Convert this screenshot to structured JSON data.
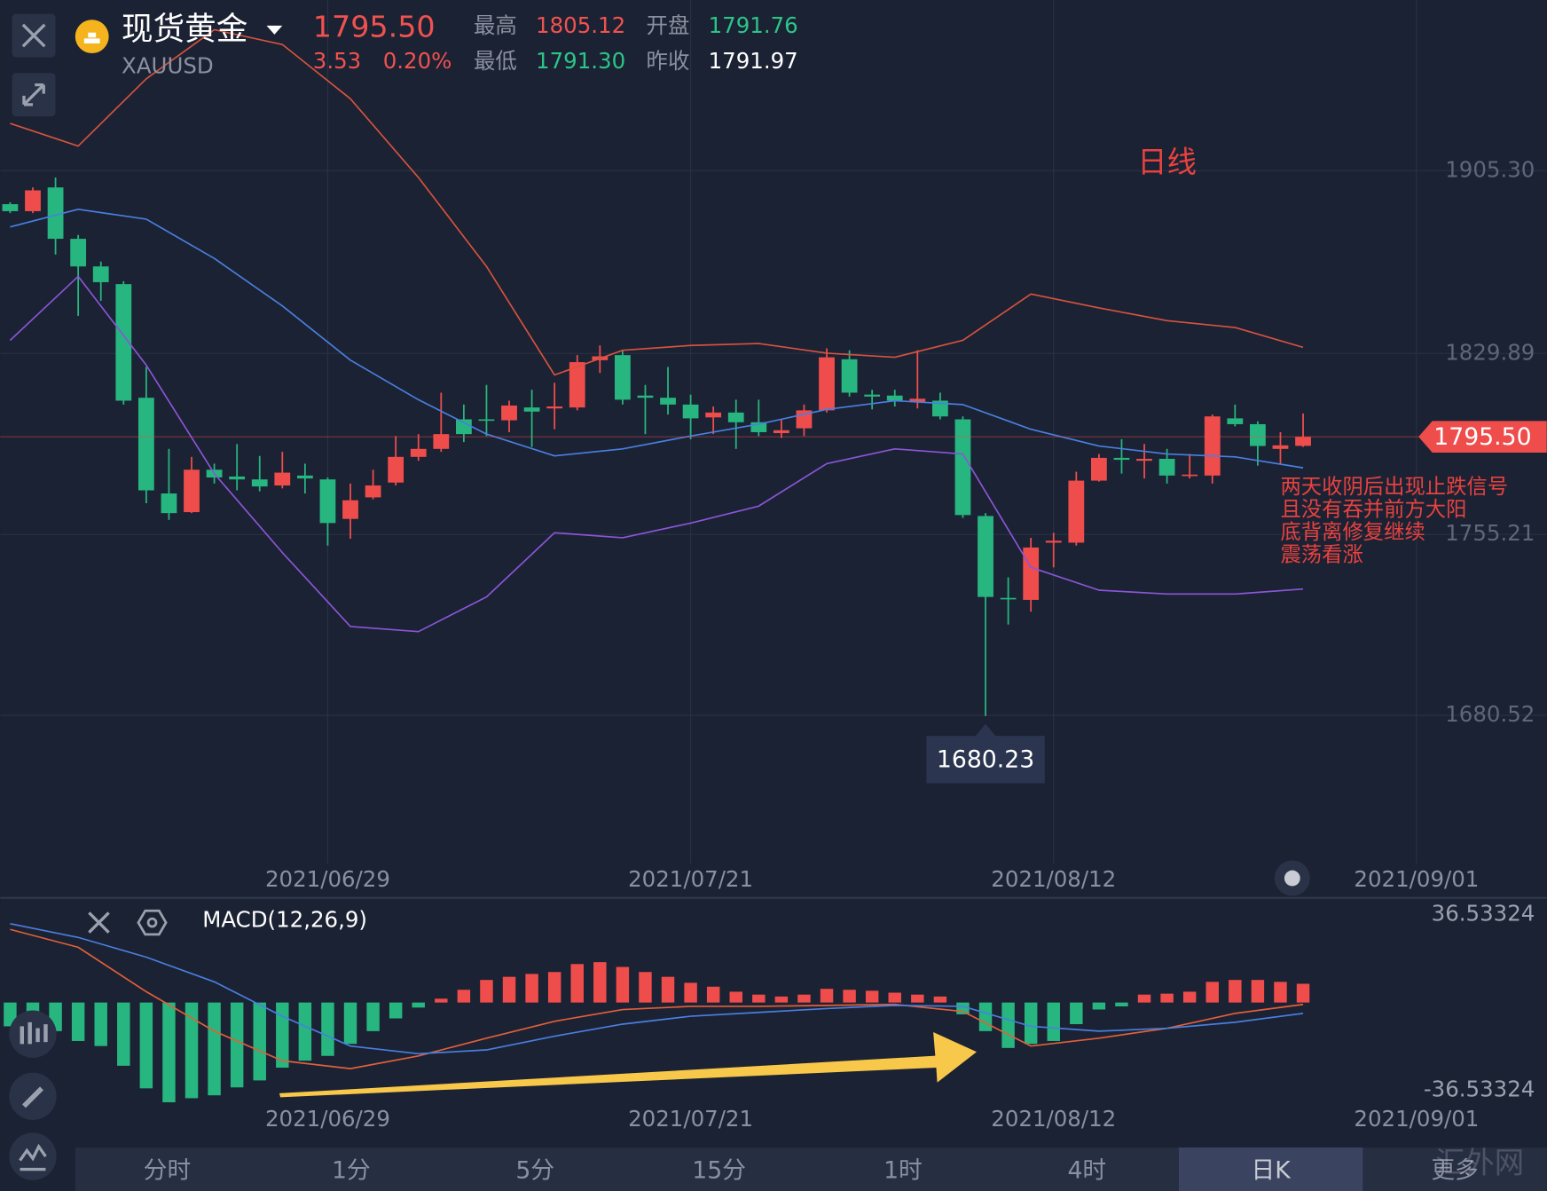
{
  "header": {
    "name": "现货黄金",
    "symbol": "XAUUSD",
    "price": "1795.50",
    "change": "3.53",
    "change_pct": "0.20%",
    "high_label": "最高",
    "high": "1805.12",
    "open_label": "开盘",
    "open": "1791.76",
    "low_label": "最低",
    "low": "1791.30",
    "prev_close_label": "昨收",
    "prev_close": "1791.97"
  },
  "chart_data": [
    {
      "type": "candlestick",
      "annotation": "日线",
      "notes": [
        "两天收阴后出现止跌信号",
        "且没有吞并前方大阳",
        "底背离修复继续",
        "震荡看涨"
      ],
      "up_color": "#ef4d4b",
      "down_color": "#27b67f",
      "x": [
        0,
        1,
        2,
        3,
        4,
        5,
        6,
        7,
        8,
        9,
        10,
        11,
        12,
        13,
        14,
        15,
        16,
        17,
        18,
        19,
        20,
        21,
        22,
        23,
        24,
        25,
        26,
        27,
        28,
        29,
        30,
        31,
        32,
        33,
        34,
        35,
        36,
        37,
        38,
        39,
        40,
        41,
        42,
        43,
        44,
        45,
        46,
        47,
        48,
        49,
        50,
        51,
        52,
        53,
        54,
        55,
        56,
        57
      ],
      "open": [
        1891.5,
        1888.6,
        1898.4,
        1877.2,
        1865.8,
        1858.5,
        1811.6,
        1772.1,
        1764.4,
        1781.9,
        1779.1,
        1777.9,
        1775.4,
        1779.5,
        1777.9,
        1761.6,
        1770.5,
        1776.6,
        1787.2,
        1790.5,
        1802.7,
        1802.7,
        1802.3,
        1807.6,
        1807.2,
        1807.6,
        1827.1,
        1829.2,
        1812.5,
        1811.6,
        1808.8,
        1803.5,
        1805.5,
        1801.5,
        1797.0,
        1799.0,
        1806.4,
        1827.5,
        1812.9,
        1812.5,
        1810.0,
        1810.4,
        1802.7,
        1762.8,
        1729.0,
        1728.2,
        1751.8,
        1751.8,
        1777.4,
        1786.8,
        1785.6,
        1786.4,
        1779.5,
        1779.5,
        1803.1,
        1800.7,
        1790.5,
        1791.76
      ],
      "high": [
        1892.3,
        1898.4,
        1902.5,
        1878.8,
        1867.8,
        1859.7,
        1824.3,
        1790.5,
        1787.2,
        1784.4,
        1792.5,
        1787.6,
        1789.3,
        1784.4,
        1778.7,
        1776.2,
        1781.9,
        1795.8,
        1796.6,
        1813.7,
        1808.8,
        1816.9,
        1810.4,
        1814.9,
        1817.8,
        1829.2,
        1833.2,
        1831.2,
        1816.9,
        1824.3,
        1812.9,
        1808.0,
        1810.8,
        1810.8,
        1802.7,
        1808.8,
        1832.0,
        1831.2,
        1814.9,
        1814.9,
        1831.2,
        1813.7,
        1803.9,
        1764.0,
        1737.5,
        1753.8,
        1755.9,
        1781.1,
        1788.4,
        1794.5,
        1792.5,
        1790.5,
        1788.4,
        1804.7,
        1808.8,
        1801.9,
        1797.4,
        1805.12
      ],
      "low": [
        1887.8,
        1887.8,
        1870.7,
        1845.4,
        1851.6,
        1808.8,
        1768.1,
        1761.2,
        1764.0,
        1776.2,
        1773.4,
        1773.0,
        1774.2,
        1772.1,
        1750.6,
        1753.4,
        1769.7,
        1775.4,
        1785.6,
        1789.3,
        1793.3,
        1795.8,
        1797.4,
        1791.3,
        1798.6,
        1806.4,
        1821.8,
        1808.8,
        1796.6,
        1804.7,
        1794.5,
        1796.6,
        1790.5,
        1795.8,
        1795.0,
        1795.8,
        1805.5,
        1812.1,
        1806.8,
        1808.0,
        1807.2,
        1802.7,
        1762.0,
        1680.23,
        1718.0,
        1723.3,
        1741.6,
        1750.6,
        1777.0,
        1780.3,
        1778.3,
        1776.2,
        1778.3,
        1776.2,
        1799.8,
        1783.6,
        1784.4,
        1791.3
      ],
      "close": [
        1888.6,
        1897.2,
        1877.2,
        1865.8,
        1859.3,
        1810.4,
        1773.4,
        1764.0,
        1781.9,
        1778.7,
        1777.9,
        1775.0,
        1780.7,
        1778.3,
        1759.9,
        1769.3,
        1775.4,
        1787.2,
        1790.5,
        1796.6,
        1796.6,
        1802.3,
        1808.4,
        1805.9,
        1808.0,
        1826.3,
        1828.7,
        1810.8,
        1811.6,
        1808.8,
        1803.1,
        1805.5,
        1801.5,
        1797.4,
        1798.2,
        1806.4,
        1828.3,
        1813.7,
        1812.1,
        1810.4,
        1811.2,
        1803.9,
        1763.2,
        1729.4,
        1728.6,
        1749.8,
        1752.6,
        1777.4,
        1786.8,
        1786.0,
        1786.4,
        1779.5,
        1779.9,
        1803.9,
        1800.7,
        1791.7,
        1791.97,
        1795.5
      ],
      "lines": [
        {
          "color": "#d5533f",
          "x": [
            0,
            3,
            6,
            9,
            12,
            15,
            18,
            21,
            24,
            27,
            30,
            33,
            36,
            39,
            42,
            45,
            48,
            51,
            54,
            57
          ],
          "values": [
            1924.8,
            1915.5,
            1943.2,
            1963.5,
            1957.4,
            1935.0,
            1902.5,
            1865.8,
            1821.0,
            1831.2,
            1833.2,
            1834.0,
            1830.0,
            1828.3,
            1835.3,
            1854.4,
            1848.7,
            1843.4,
            1840.6,
            1832.4
          ]
        },
        {
          "color": "#4a7fe0",
          "x": [
            0,
            3,
            6,
            9,
            12,
            15,
            18,
            21,
            24,
            27,
            30,
            33,
            36,
            39,
            42,
            45,
            48,
            51,
            54,
            57
          ],
          "values": [
            1882.1,
            1889.4,
            1885.3,
            1869.1,
            1849.5,
            1827.1,
            1810.8,
            1796.6,
            1787.6,
            1790.5,
            1795.8,
            1800.7,
            1806.8,
            1810.4,
            1808.8,
            1798.6,
            1791.7,
            1788.4,
            1787.2,
            1782.7
          ]
        },
        {
          "color": "#8b55d8",
          "x": [
            0,
            3,
            6,
            9,
            12,
            15,
            18,
            21,
            24,
            27,
            30,
            33,
            36,
            39,
            42,
            45,
            48,
            51,
            54,
            57
          ],
          "values": [
            1835.3,
            1861.7,
            1825.1,
            1780.3,
            1747.7,
            1717.2,
            1715.1,
            1729.4,
            1755.9,
            1753.8,
            1759.9,
            1766.9,
            1784.4,
            1790.5,
            1788.4,
            1741.6,
            1732.2,
            1730.6,
            1730.6,
            1732.7
          ]
        }
      ],
      "xlim": [
        -0.435,
        67.74
      ],
      "ylim": [
        1619.44,
        1975.75
      ],
      "yticks": [
        1680.52,
        1755.21,
        1829.89,
        {
          "value": 1905.3,
          "label": "1905.30"
        }
      ],
      "xticks": [
        {
          "value": 14,
          "label": "2021/06/29"
        },
        {
          "value": 30,
          "label": "2021/07/21"
        },
        {
          "value": 46,
          "label": "2021/08/12"
        },
        {
          "value": 62,
          "label": "2021/09/01"
        }
      ],
      "grid": true
    },
    {
      "type": "macd",
      "title": "MACD(12,26,9)",
      "up_color": "#ef4d4b",
      "down_color": "#27b67f",
      "x": [
        0,
        1,
        2,
        3,
        4,
        5,
        6,
        7,
        8,
        9,
        10,
        11,
        12,
        13,
        14,
        15,
        16,
        17,
        18,
        19,
        20,
        21,
        22,
        23,
        24,
        25,
        26,
        27,
        28,
        29,
        30,
        31,
        32,
        33,
        34,
        35,
        36,
        37,
        38,
        39,
        40,
        41,
        42,
        43,
        44,
        45,
        46,
        47,
        48,
        49,
        50,
        51,
        52,
        53,
        54,
        55,
        56,
        57
      ],
      "values": [
        -9.9,
        -7.8,
        -11.9,
        -16.0,
        -18.1,
        -26.3,
        -35.7,
        -41.5,
        -39.8,
        -38.6,
        -35.3,
        -32.4,
        -27.1,
        -24.2,
        -22.2,
        -17.2,
        -11.9,
        -6.6,
        -2.1,
        1.6,
        5.3,
        9.4,
        10.7,
        11.9,
        12.7,
        16.0,
        16.8,
        14.8,
        12.7,
        10.7,
        8.2,
        6.6,
        4.5,
        3.3,
        2.5,
        3.3,
        5.7,
        5.3,
        4.9,
        4.1,
        3.3,
        2.5,
        -4.9,
        -11.9,
        -18.9,
        -17.2,
        -16.0,
        -9.0,
        -2.9,
        -1.6,
        3.3,
        3.7,
        4.5,
        8.6,
        9.4,
        9.4,
        8.6,
        7.8
      ],
      "lines": [
        {
          "color": "#e0603a",
          "x": [
            0,
            3,
            6,
            9,
            12,
            15,
            18,
            21,
            24,
            27,
            30,
            33,
            36,
            39,
            42,
            45,
            48,
            51,
            54,
            57
          ],
          "values": [
            30.4,
            23.0,
            4.5,
            -11.9,
            -24.2,
            -27.5,
            -22.2,
            -14.8,
            -7.8,
            -2.9,
            -1.6,
            -1.6,
            -1.2,
            -0.8,
            -3.7,
            -18.1,
            -14.8,
            -10.7,
            -4.5,
            -0.8
          ]
        },
        {
          "color": "#4a7fe0",
          "x": [
            0,
            3,
            6,
            9,
            12,
            15,
            18,
            21,
            24,
            27,
            30,
            33,
            36,
            39,
            42,
            45,
            48,
            51,
            54,
            57
          ],
          "values": [
            32.8,
            27.1,
            18.9,
            8.6,
            -5.7,
            -18.1,
            -21.3,
            -19.7,
            -14.0,
            -9.0,
            -5.7,
            -4.1,
            -2.5,
            -1.2,
            -1.6,
            -9.9,
            -11.9,
            -10.7,
            -8.2,
            -4.5
          ]
        }
      ],
      "xlim": [
        -0.435,
        67.74
      ],
      "ylim": [
        -59.11,
        42.69
      ],
      "yticks": [
        -36.53324,
        36.53324
      ],
      "xticks": [
        {
          "value": 14,
          "label": "2021/06/29"
        },
        {
          "value": 30,
          "label": "2021/07/21"
        },
        {
          "value": 46,
          "label": "2021/08/12"
        },
        {
          "value": 62,
          "label": "2021/09/01"
        }
      ],
      "grid": false
    }
  ],
  "tabs": {
    "items": [
      "分时",
      "1分",
      "5分",
      "15分",
      "1时",
      "4时",
      "日K",
      "更多"
    ],
    "selected": 6
  },
  "watermark": "汇外网"
}
